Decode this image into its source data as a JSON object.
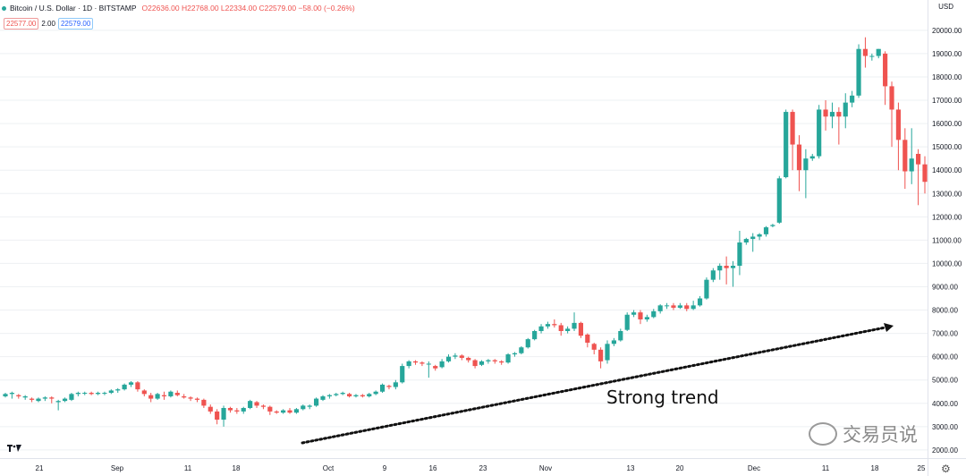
{
  "header": {
    "symbol": "Bitcoin / U.S. Dollar · 1D · BITSTAMP",
    "ohlc": "O22636.00 H22768.00 L22334.00 C22579.00 −58.00 (−0.26%)",
    "bid": "22577.00",
    "spread": "2.00",
    "ask": "22579.00",
    "currency": "USD"
  },
  "annotation": "Strong trend",
  "watermark": "交易员说",
  "colors": {
    "up": "#26a69a",
    "down": "#ef5350",
    "grid": "#eef0f3",
    "arrow": "#111111"
  },
  "icons": [
    "tradingview-logo-icon",
    "gear-icon",
    "wechat-icon"
  ],
  "chart_data": {
    "type": "candlestick",
    "y_axis": {
      "ticks": [
        2000,
        3000,
        4000,
        5000,
        6000,
        7000,
        8000,
        9000,
        10000,
        11000,
        12000,
        13000,
        14000,
        15000,
        16000,
        17000,
        18000,
        19000,
        20000
      ],
      "ylim": [
        1650,
        21300
      ],
      "side": "right"
    },
    "x_ticks": [
      "21",
      "Sep",
      "11",
      "18",
      "Oct",
      "9",
      "16",
      "23",
      "Nov",
      "13",
      "20",
      "Dec",
      "11",
      "18",
      "25"
    ],
    "series": [
      [
        4300,
        4400,
        4250,
        4450
      ],
      [
        4400,
        4450,
        4200,
        4500
      ],
      [
        4350,
        4300,
        4200,
        4400
      ],
      [
        4250,
        4300,
        4150,
        4350
      ],
      [
        4200,
        4150,
        4050,
        4250
      ],
      [
        4100,
        4200,
        4050,
        4250
      ],
      [
        4200,
        4250,
        4100,
        4300
      ],
      [
        4250,
        4200,
        4000,
        4300
      ],
      [
        4050,
        4100,
        3700,
        4150
      ],
      [
        4100,
        4200,
        4050,
        4250
      ],
      [
        4150,
        4400,
        4100,
        4450
      ],
      [
        4400,
        4450,
        4300,
        4500
      ],
      [
        4450,
        4450,
        4350,
        4500
      ],
      [
        4450,
        4400,
        4350,
        4500
      ],
      [
        4400,
        4450,
        4350,
        4500
      ],
      [
        4450,
        4450,
        4350,
        4500
      ],
      [
        4450,
        4550,
        4400,
        4600
      ],
      [
        4550,
        4600,
        4450,
        4650
      ],
      [
        4600,
        4800,
        4550,
        4850
      ],
      [
        4800,
        4900,
        4700,
        4950
      ],
      [
        4900,
        4600,
        4500,
        4950
      ],
      [
        4550,
        4400,
        4300,
        4600
      ],
      [
        4350,
        4200,
        4050,
        4450
      ],
      [
        4200,
        4400,
        4150,
        4450
      ],
      [
        4350,
        4300,
        4150,
        4500
      ],
      [
        4300,
        4500,
        4250,
        4550
      ],
      [
        4450,
        4350,
        4300,
        4550
      ],
      [
        4300,
        4250,
        4200,
        4400
      ],
      [
        4250,
        4200,
        4100,
        4300
      ],
      [
        4200,
        4150,
        4050,
        4250
      ],
      [
        4150,
        3900,
        3800,
        4200
      ],
      [
        3850,
        3650,
        3550,
        3950
      ],
      [
        3650,
        3300,
        3100,
        3750
      ],
      [
        3300,
        3800,
        3000,
        3900
      ],
      [
        3800,
        3700,
        3600,
        3850
      ],
      [
        3700,
        3650,
        3550,
        3800
      ],
      [
        3650,
        3800,
        3550,
        3850
      ],
      [
        3800,
        4100,
        3750,
        4150
      ],
      [
        4050,
        3900,
        3800,
        4100
      ],
      [
        3900,
        3850,
        3750,
        3950
      ],
      [
        3850,
        3650,
        3500,
        3900
      ],
      [
        3650,
        3600,
        3550,
        3700
      ],
      [
        3600,
        3700,
        3550,
        3750
      ],
      [
        3700,
        3600,
        3550,
        3800
      ],
      [
        3600,
        3750,
        3550,
        3800
      ],
      [
        3750,
        3900,
        3700,
        3950
      ],
      [
        3850,
        3900,
        3750,
        3950
      ],
      [
        3900,
        4200,
        3850,
        4250
      ],
      [
        4150,
        4300,
        4100,
        4350
      ],
      [
        4300,
        4350,
        4200,
        4400
      ],
      [
        4350,
        4400,
        4300,
        4450
      ],
      [
        4400,
        4450,
        4350,
        4500
      ],
      [
        4400,
        4300,
        4250,
        4450
      ],
      [
        4300,
        4350,
        4250,
        4400
      ],
      [
        4350,
        4300,
        4250,
        4400
      ],
      [
        4300,
        4400,
        4250,
        4450
      ],
      [
        4400,
        4500,
        4350,
        4550
      ],
      [
        4500,
        4800,
        4450,
        4850
      ],
      [
        4750,
        4700,
        4600,
        4800
      ],
      [
        4700,
        4900,
        4600,
        5000
      ],
      [
        4900,
        5600,
        4850,
        5700
      ],
      [
        5600,
        5800,
        5500,
        5850
      ],
      [
        5800,
        5750,
        5650,
        5850
      ],
      [
        5750,
        5700,
        5600,
        5800
      ],
      [
        5700,
        5700,
        5100,
        5800
      ],
      [
        5600,
        5500,
        5400,
        5650
      ],
      [
        5550,
        5800,
        5500,
        5900
      ],
      [
        5800,
        6000,
        5750,
        6100
      ],
      [
        6000,
        6050,
        5900,
        6150
      ],
      [
        6050,
        5950,
        5850,
        6100
      ],
      [
        5950,
        5850,
        5750,
        6000
      ],
      [
        5850,
        5600,
        5500,
        5900
      ],
      [
        5650,
        5800,
        5600,
        5850
      ],
      [
        5800,
        5850,
        5700,
        5900
      ],
      [
        5850,
        5800,
        5700,
        5900
      ],
      [
        5800,
        5750,
        5650,
        5850
      ],
      [
        5750,
        6100,
        5700,
        6150
      ],
      [
        6100,
        6150,
        6000,
        6200
      ],
      [
        6150,
        6400,
        6100,
        6450
      ],
      [
        6400,
        6750,
        6350,
        6800
      ],
      [
        6750,
        7100,
        6700,
        7150
      ],
      [
        7100,
        7300,
        7000,
        7400
      ],
      [
        7300,
        7400,
        7200,
        7500
      ],
      [
        7400,
        7350,
        7250,
        7600
      ],
      [
        7350,
        7100,
        6900,
        7450
      ],
      [
        7100,
        7200,
        7000,
        7300
      ],
      [
        7200,
        7450,
        7100,
        7900
      ],
      [
        7450,
        6900,
        6800,
        7500
      ],
      [
        6950,
        6600,
        6400,
        7000
      ],
      [
        6550,
        6300,
        6100,
        6600
      ],
      [
        6300,
        5800,
        5500,
        6400
      ],
      [
        5850,
        6550,
        5700,
        6700
      ],
      [
        6550,
        6700,
        6450,
        6800
      ],
      [
        6700,
        7100,
        6650,
        7200
      ],
      [
        7150,
        7800,
        7100,
        7900
      ],
      [
        7800,
        7900,
        7700,
        8000
      ],
      [
        7900,
        7600,
        7400,
        8000
      ],
      [
        7600,
        7700,
        7500,
        7800
      ],
      [
        7700,
        7950,
        7650,
        8050
      ],
      [
        7950,
        8200,
        7850,
        8250
      ],
      [
        8200,
        8200,
        8050,
        8300
      ],
      [
        8200,
        8100,
        8000,
        8300
      ],
      [
        8100,
        8200,
        8050,
        8300
      ],
      [
        8200,
        8050,
        7950,
        8300
      ],
      [
        8050,
        8200,
        8000,
        8400
      ],
      [
        8200,
        8500,
        8150,
        8600
      ],
      [
        8500,
        9300,
        8450,
        9400
      ],
      [
        9300,
        9700,
        9200,
        9800
      ],
      [
        9700,
        9900,
        9300,
        10000
      ],
      [
        9900,
        9800,
        9100,
        10300
      ],
      [
        9800,
        9900,
        9000,
        10100
      ],
      [
        9900,
        10900,
        9500,
        11400
      ],
      [
        10900,
        11050,
        10800,
        11100
      ],
      [
        11050,
        11150,
        10500,
        11300
      ],
      [
        11150,
        11250,
        11000,
        11300
      ],
      [
        11250,
        11550,
        11150,
        11600
      ],
      [
        11600,
        11650,
        11550,
        11700
      ],
      [
        11750,
        13650,
        11700,
        13750
      ],
      [
        13700,
        16500,
        13650,
        16600
      ],
      [
        16500,
        15100,
        14000,
        16600
      ],
      [
        15100,
        14000,
        13100,
        15500
      ],
      [
        14000,
        14500,
        12800,
        14900
      ],
      [
        14500,
        14600,
        14400,
        14700
      ],
      [
        14600,
        16600,
        14500,
        16800
      ],
      [
        16600,
        16300,
        15700,
        17000
      ],
      [
        16300,
        16500,
        15800,
        16900
      ],
      [
        16500,
        16300,
        15100,
        16700
      ],
      [
        16300,
        16900,
        15800,
        17300
      ],
      [
        16900,
        17200,
        16700,
        17400
      ],
      [
        17200,
        19200,
        17100,
        19400
      ],
      [
        19200,
        18900,
        18400,
        19700
      ],
      [
        18900,
        18900,
        18700,
        19000
      ],
      [
        18900,
        19200,
        18800,
        19200
      ],
      [
        19000,
        17600,
        16800,
        19100
      ],
      [
        17600,
        16600,
        15000,
        17800
      ],
      [
        16600,
        15300,
        14000,
        16900
      ],
      [
        15300,
        13950,
        13200,
        15800
      ],
      [
        13950,
        14500,
        13400,
        15800
      ],
      [
        14700,
        14250,
        12500,
        14900
      ],
      [
        14250,
        13500,
        13000,
        14600
      ]
    ],
    "series_fields": [
      "open",
      "close",
      "low",
      "high"
    ]
  }
}
